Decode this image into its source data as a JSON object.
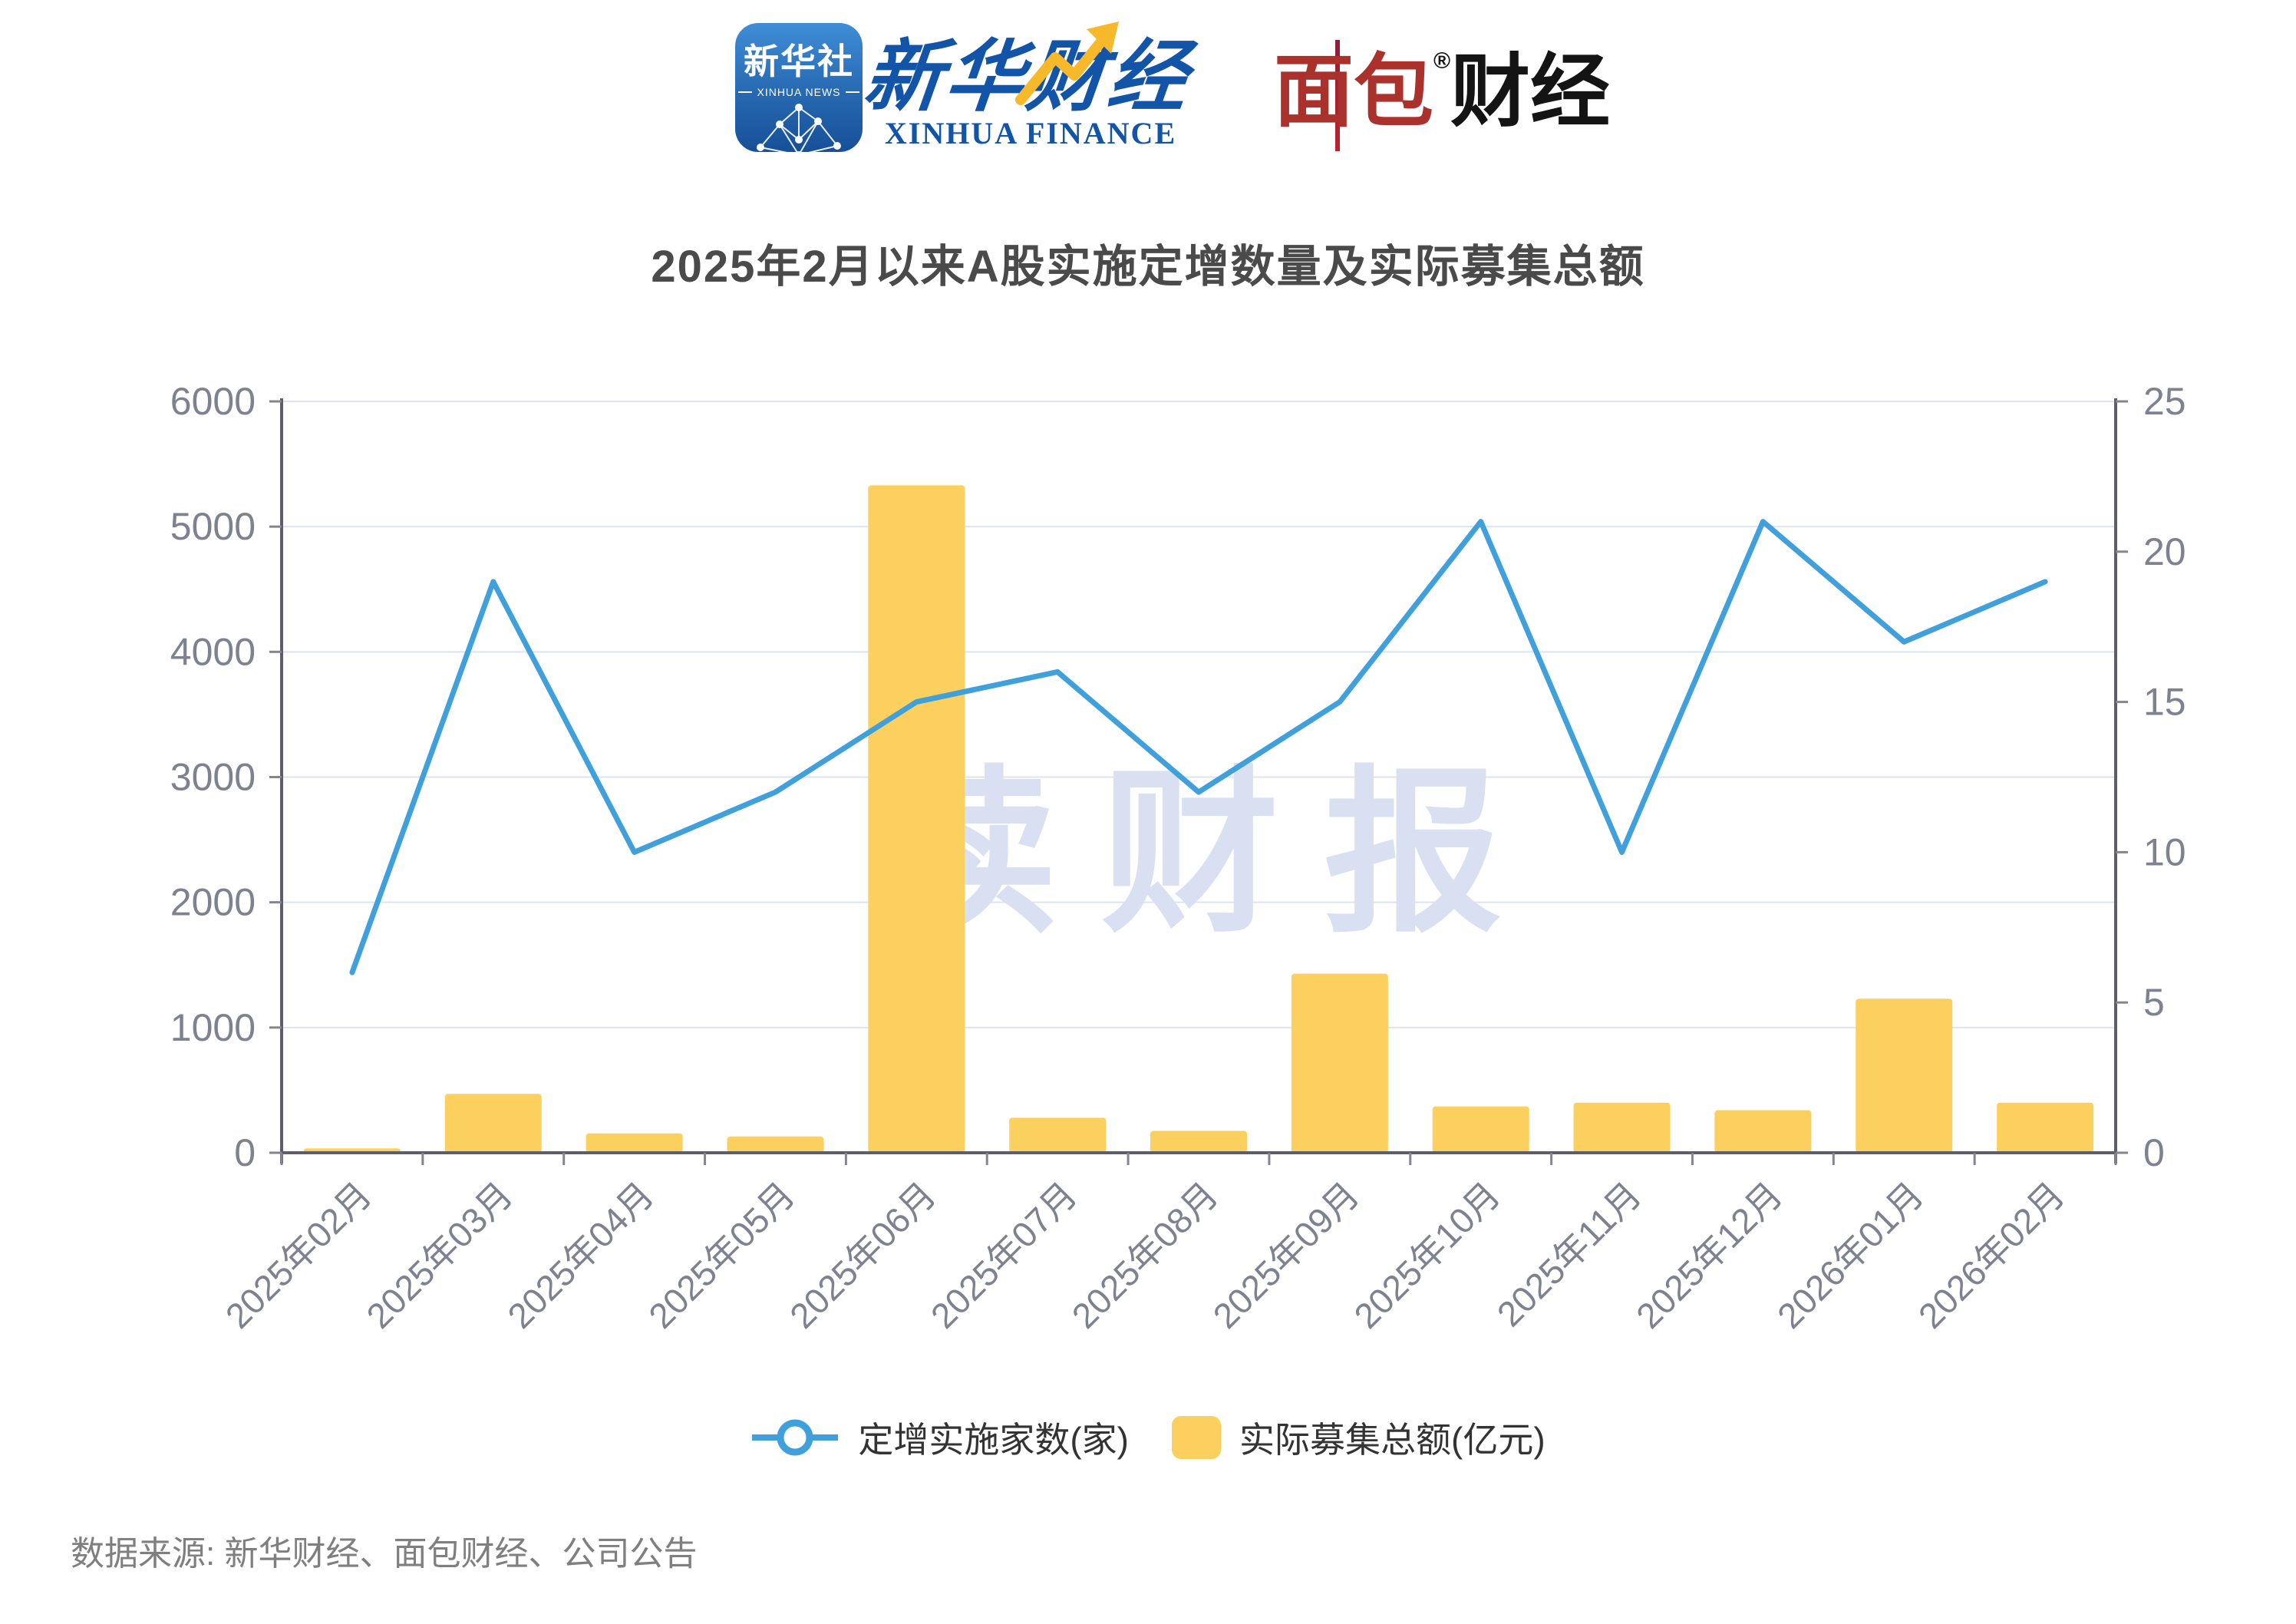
{
  "header": {
    "xinhua_news_icon": {
      "cn": "新华社",
      "en": "XINHUA NEWS"
    },
    "xinhua_finance": {
      "cn": "新华财经",
      "en": "XINHUA FINANCE"
    },
    "bread_finance": {
      "cn_red": "面包",
      "cn_black": "财经",
      "reg_mark": "®"
    }
  },
  "title": "2025年2月以来A股实施定增数量及实际募集总额",
  "watermark": "读财报",
  "source_note": "数据来源: 新华财经、面包财经、公司公告",
  "legend": {
    "line_label": "定增实施家数(家)",
    "bar_label": "实际募集总额(亿元)"
  },
  "colors": {
    "frame_blue": "#1d4c90",
    "frame_red": "#c0212e",
    "line_blue": "#3fa0db",
    "bar_yellow": "#fbd05e",
    "grid": "#dde3f0",
    "axis_line": "#5d5e66",
    "tick": "#85868d",
    "axis_text": "#7e8290",
    "watermark": "#d8e0f1",
    "title_text": "#4a4a4a"
  },
  "chart_data": {
    "type": "combo-bar-line-dual-axis",
    "title": "2025年2月以来A股实施定增数量及实际募集总额",
    "categories": [
      "2025年02月",
      "2025年03月",
      "2025年04月",
      "2025年05月",
      "2025年06月",
      "2025年07月",
      "2025年08月",
      "2025年09月",
      "2025年10月",
      "2025年11月",
      "2025年12月",
      "2026年01月",
      "2026年02月"
    ],
    "series": [
      {
        "name": "定增实施家数(家)",
        "type": "line",
        "axis": "right",
        "color": "#3fa0db",
        "values": [
          6,
          19,
          10,
          12,
          15,
          16,
          12,
          15,
          21,
          10,
          21,
          17,
          19
        ]
      },
      {
        "name": "实际募集总额(亿元)",
        "type": "bar",
        "axis": "left",
        "color": "#fbd05e",
        "values": [
          35,
          470,
          155,
          130,
          5330,
          280,
          175,
          1430,
          370,
          400,
          340,
          1230,
          400
        ]
      }
    ],
    "y_left": {
      "min": 0,
      "max": 6000,
      "tick_step": 1000
    },
    "y_right": {
      "min": 0,
      "max": 25,
      "tick_step": 5
    },
    "grid": true,
    "legend_position": "bottom",
    "x_label_rotation": -45
  }
}
